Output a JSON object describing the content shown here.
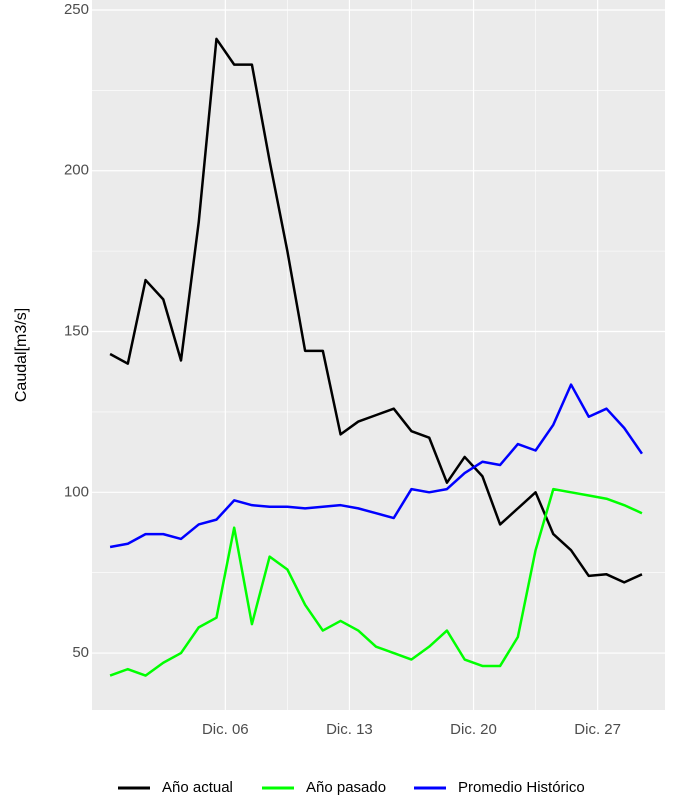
{
  "chart_data": {
    "type": "line",
    "y_label": "Caudal[m3/s]",
    "x": [
      0,
      1,
      2,
      3,
      4,
      5,
      6,
      7,
      8,
      9,
      10,
      11,
      12,
      13,
      14,
      15,
      16,
      17,
      18,
      19,
      20,
      21,
      22,
      23,
      24,
      25,
      26,
      27,
      28,
      29,
      30
    ],
    "series": [
      {
        "name": "Año actual",
        "color": "#000000",
        "values": [
          143,
          140,
          166,
          160,
          141,
          184,
          241,
          233,
          233,
          203,
          175,
          144,
          144,
          118,
          122,
          124,
          126,
          119,
          117,
          103,
          111,
          105,
          90,
          95,
          100,
          87,
          82,
          74,
          74.5,
          72,
          74.5
        ]
      },
      {
        "name": "Año pasado",
        "color": "#00ff00",
        "values": [
          43,
          45,
          43,
          47,
          50,
          58,
          61,
          89,
          59,
          80,
          76,
          65,
          57,
          60,
          57,
          52,
          50,
          48,
          52,
          57,
          48,
          46,
          46,
          55,
          82,
          101,
          100,
          99,
          98,
          96,
          93.5
        ]
      },
      {
        "name": "Promedio Histórico",
        "color": "#0000ff",
        "values": [
          83,
          84,
          87,
          87,
          85.5,
          90,
          91.5,
          97.5,
          96,
          95.5,
          95.5,
          95,
          95.5,
          96,
          95,
          93.5,
          92,
          101,
          100,
          101,
          106,
          109.5,
          108.5,
          115,
          113,
          121,
          133.5,
          123.5,
          126,
          120,
          112
        ]
      }
    ],
    "xlim": [
      -1.02,
      31.3
    ],
    "xticks": [
      {
        "value": 6.5,
        "label": "Dic. 06"
      },
      {
        "value": 13.5,
        "label": "Dic. 13"
      },
      {
        "value": 20.5,
        "label": "Dic. 20"
      },
      {
        "value": 27.5,
        "label": "Dic. 27"
      }
    ],
    "ylim": [
      32.3,
      253.1
    ],
    "yticks": [
      50,
      100,
      150,
      200,
      250
    ],
    "grid": true,
    "legend_position": "bottom"
  }
}
